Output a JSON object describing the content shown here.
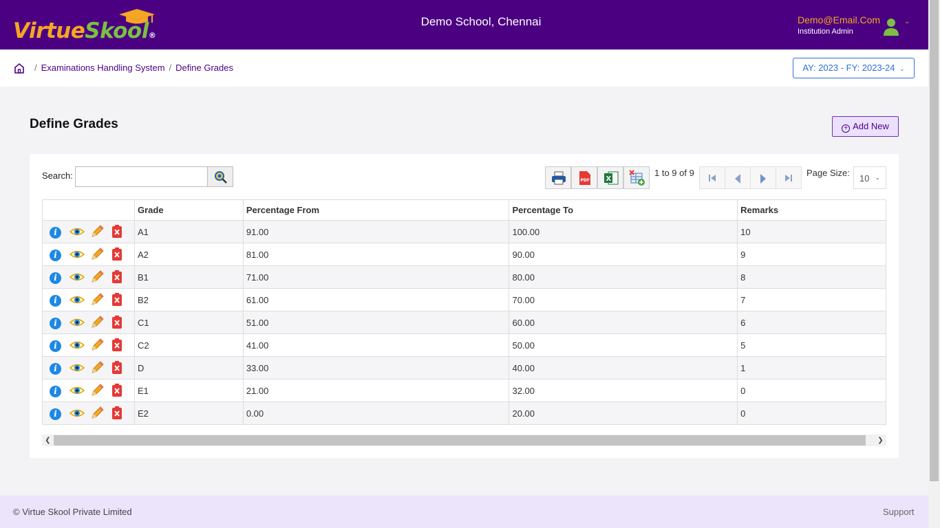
{
  "header": {
    "logo_text_virtue": "Virtue",
    "logo_text_skool": "Skool",
    "logo_registered": "®",
    "school_name": "Demo School, Chennai",
    "user_email": "Demo@Email.Com",
    "user_role": "Institution Admin"
  },
  "breadcrumb": {
    "items": [
      "Examinations Handling System",
      "Define Grades"
    ],
    "separator": "/"
  },
  "academic_year": "AY: 2023 - FY: 2023-24",
  "page": {
    "title": "Define Grades",
    "add_button": "Add New"
  },
  "toolbar": {
    "search_label": "Search:",
    "search_value": "",
    "pager_text": "1 to 9 of 9",
    "page_size_label": "Page Size:",
    "page_size_value": "10"
  },
  "table": {
    "columns": [
      "",
      "Grade",
      "Percentage From",
      "Percentage To",
      "Remarks"
    ],
    "rows": [
      {
        "grade": "A1",
        "from": "91.00",
        "to": "100.00",
        "remarks": "10"
      },
      {
        "grade": "A2",
        "from": "81.00",
        "to": "90.00",
        "remarks": "9"
      },
      {
        "grade": "B1",
        "from": "71.00",
        "to": "80.00",
        "remarks": "8"
      },
      {
        "grade": "B2",
        "from": "61.00",
        "to": "70.00",
        "remarks": "7"
      },
      {
        "grade": "C1",
        "from": "51.00",
        "to": "60.00",
        "remarks": "6"
      },
      {
        "grade": "C2",
        "from": "41.00",
        "to": "50.00",
        "remarks": "5"
      },
      {
        "grade": "D",
        "from": "33.00",
        "to": "40.00",
        "remarks": "1"
      },
      {
        "grade": "E1",
        "from": "21.00",
        "to": "32.00",
        "remarks": "0"
      },
      {
        "grade": "E2",
        "from": "0.00",
        "to": "20.00",
        "remarks": "0"
      }
    ],
    "row_actions": [
      "info-icon",
      "view-icon",
      "edit-icon",
      "delete-icon"
    ]
  },
  "footer": {
    "copyright": "© Virtue Skool Private Limited",
    "support": "Support"
  },
  "colors": {
    "brand_purple": "#4b0082",
    "brand_orange": "#f5a623",
    "brand_green": "#7bc043",
    "accent_blue": "#2f6fd6"
  }
}
